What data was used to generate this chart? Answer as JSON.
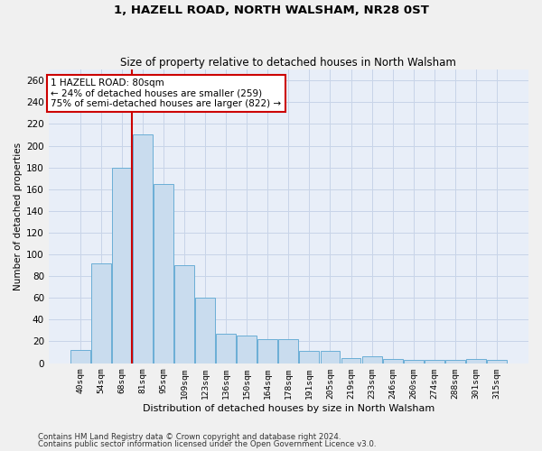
{
  "title": "1, HAZELL ROAD, NORTH WALSHAM, NR28 0ST",
  "subtitle": "Size of property relative to detached houses in North Walsham",
  "xlabel": "Distribution of detached houses by size in North Walsham",
  "ylabel": "Number of detached properties",
  "categories": [
    "40sqm",
    "54sqm",
    "68sqm",
    "81sqm",
    "95sqm",
    "109sqm",
    "123sqm",
    "136sqm",
    "150sqm",
    "164sqm",
    "178sqm",
    "191sqm",
    "205sqm",
    "219sqm",
    "233sqm",
    "246sqm",
    "260sqm",
    "274sqm",
    "288sqm",
    "301sqm",
    "315sqm"
  ],
  "values": [
    12,
    92,
    180,
    210,
    165,
    90,
    60,
    27,
    25,
    22,
    22,
    11,
    11,
    5,
    6,
    4,
    3,
    3,
    3,
    4,
    3
  ],
  "bar_color": "#c9dcee",
  "bar_edge_color": "#6aaed6",
  "highlight_index": 2,
  "highlight_line_color": "#cc0000",
  "ylim": [
    0,
    270
  ],
  "yticks": [
    0,
    20,
    40,
    60,
    80,
    100,
    120,
    140,
    160,
    180,
    200,
    220,
    240,
    260
  ],
  "annotation_text": "1 HAZELL ROAD: 80sqm\n← 24% of detached houses are smaller (259)\n75% of semi-detached houses are larger (822) →",
  "annotation_box_color": "#ffffff",
  "annotation_box_edge": "#cc0000",
  "footnote1": "Contains HM Land Registry data © Crown copyright and database right 2024.",
  "footnote2": "Contains public sector information licensed under the Open Government Licence v3.0.",
  "grid_color": "#c8d4e8",
  "background_color": "#e8eef8",
  "fig_background": "#f0f0f0"
}
